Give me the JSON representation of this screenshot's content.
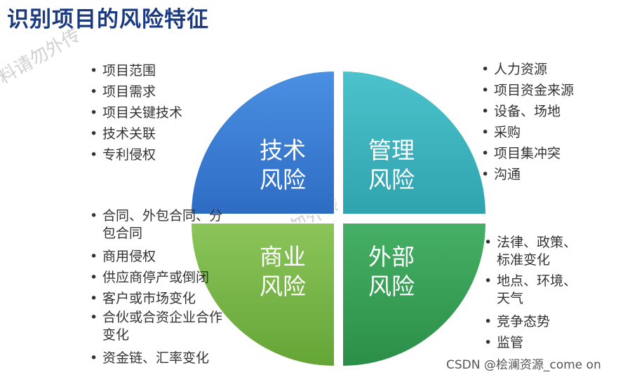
{
  "title": "识别项目的风险特征",
  "quadrants": {
    "technical": {
      "label_1": "技术",
      "label_2": "风险",
      "color": "#3b7fd4"
    },
    "management": {
      "label_1": "管理",
      "label_2": "风险",
      "color": "#3db3bf"
    },
    "commercial": {
      "label_1": "商业",
      "label_2": "风险",
      "color": "#78b443"
    },
    "external": {
      "label_1": "外部",
      "label_2": "风险",
      "color": "#35a055"
    }
  },
  "technical_items": [
    "项目范围",
    "项目需求",
    "项目关键技术",
    "技术关联",
    "专利侵权"
  ],
  "management_items": [
    "人力资源",
    "项目资金来源",
    "设备、场地",
    "采购",
    "项目集冲突",
    "沟通"
  ],
  "commercial_items": [
    "合同、外包合同、分包合同",
    "商用侵权",
    "供应商停产或倒闭",
    "客户或市场变化",
    "合伙或合资企业合作变化",
    "资金链、汇率变化"
  ],
  "external_items": [
    "法律、政策、标准变化",
    "地点、环境、天气",
    "竞争态势",
    "监管"
  ],
  "watermark": "CSDN @桧澜资源_come on"
}
